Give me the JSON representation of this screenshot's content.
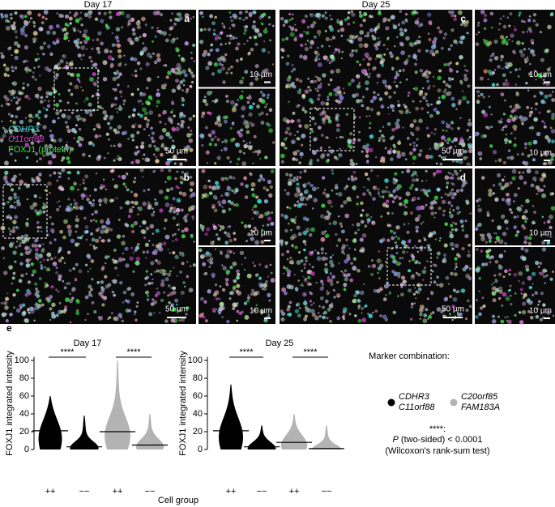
{
  "panels": {
    "columns": [
      "Day 17",
      "Day 25"
    ],
    "letters": [
      "a",
      "b",
      "c",
      "d"
    ],
    "channels": [
      "CDHR3",
      "C11orf88",
      "FOXJ1 (protein)"
    ],
    "scale_large": [
      "50 µm",
      "50 µm",
      "50 µm",
      "50 µm"
    ],
    "scale_small": [
      "10 µm",
      "10 µm",
      "10 µm",
      "10 µm",
      "10 µm",
      "10 µm",
      "10 µm"
    ]
  },
  "panel_e_label": "e",
  "x_axis_label": "Cell group",
  "chart_data": [
    {
      "type": "violin",
      "title": "Day 17",
      "ylabel": "FOXJ1 integrated intensity",
      "categories": [
        "++",
        "−−",
        "++",
        "−−"
      ],
      "colors": [
        "#000000",
        "#000000",
        "#b3b3b3",
        "#b3b3b3"
      ],
      "medians": [
        21,
        3,
        20,
        5
      ],
      "maxima": [
        60,
        38,
        100,
        40
      ],
      "significance": [
        "****",
        "****"
      ],
      "ylim": [
        0,
        104
      ],
      "yticks": [
        0,
        20,
        40,
        60,
        80,
        100
      ]
    },
    {
      "type": "violin",
      "title": "Day 25",
      "ylabel": "FOXJ1 integrated intensity",
      "categories": [
        "++",
        "−−",
        "++",
        "−−"
      ],
      "colors": [
        "#000000",
        "#000000",
        "#b3b3b3",
        "#b3b3b3"
      ],
      "medians": [
        21,
        3,
        8,
        1
      ],
      "maxima": [
        73,
        27,
        40,
        27
      ],
      "significance": [
        "****",
        "****"
      ],
      "ylim": [
        0,
        104
      ],
      "yticks": [
        0,
        20,
        40,
        60,
        80,
        100
      ]
    }
  ],
  "legend": {
    "title": "Marker combination:",
    "entries": [
      {
        "lines": [
          "CDHR3",
          "C11orf88"
        ],
        "color": "#000000"
      },
      {
        "lines": [
          "C20orf85",
          "FAM183A"
        ],
        "color": "#b3b3b3"
      }
    ],
    "note": [
      "****:",
      "P",
      " (two-sided) < 0.0001",
      "(Wilcoxon's rank-sum test)"
    ]
  }
}
